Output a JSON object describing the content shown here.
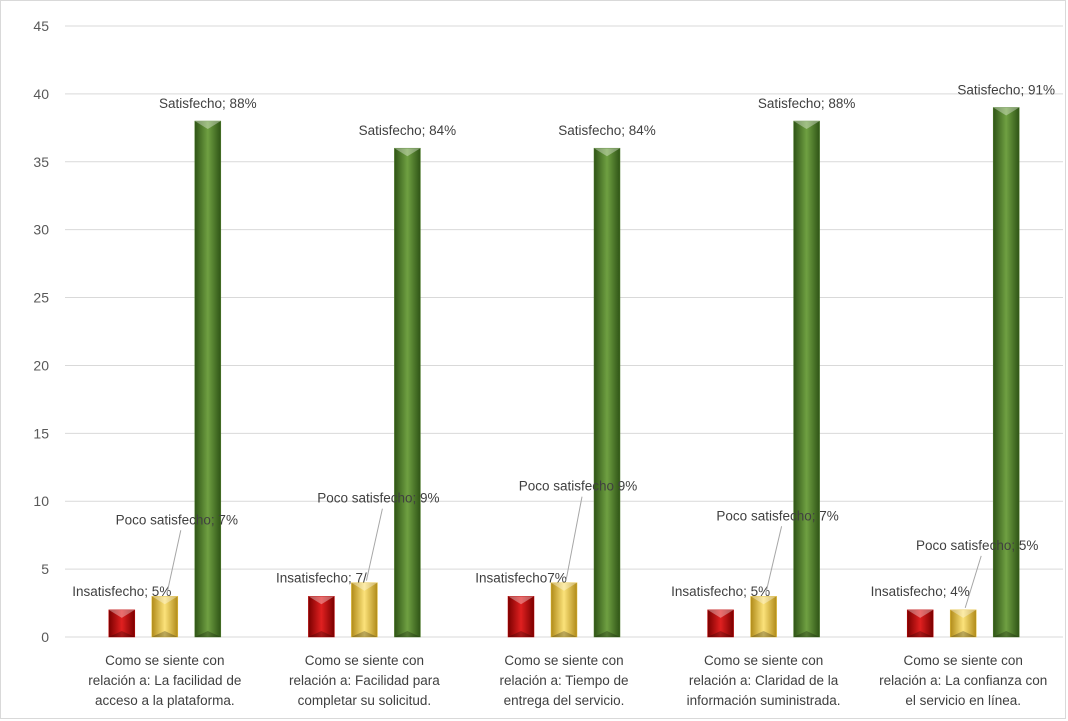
{
  "chart_data": {
    "type": "bar",
    "title": "",
    "xlabel": "",
    "ylabel": "",
    "ylim": [
      0,
      45
    ],
    "yticks": [
      0,
      5,
      10,
      15,
      20,
      25,
      30,
      35,
      40,
      45
    ],
    "grid": true,
    "legend": "none",
    "categories": [
      [
        "Como se siente con",
        "relación a: La facilidad de",
        "acceso a la plataforma."
      ],
      [
        "Como se siente con",
        "relación a: Facilidad para",
        "completar su solicitud."
      ],
      [
        "Como se siente con",
        "relación a: Tiempo de",
        "entrega del servicio."
      ],
      [
        "Como se siente con",
        "relación a: Claridad de la",
        "información suministrada."
      ],
      [
        "Como se siente con",
        "relación a: La confianza con",
        "el servicio en línea."
      ]
    ],
    "series": [
      {
        "color": "#c00000",
        "values": [
          2,
          3,
          3,
          2,
          2
        ],
        "labels": [
          "Insatisfecho; 5%",
          "Insatisfecho; 7/",
          "Insatisfecho7%",
          "Insatisfecho; 5%",
          "Insatisfecho; 4%"
        ]
      },
      {
        "color": "#e6c13a",
        "values": [
          3,
          4,
          4,
          3,
          2
        ],
        "labels": [
          "Poco satisfecho; 7%",
          "Poco satisfecho; 9%",
          "Poco satisfecho 9%",
          "Poco satisfecho; 7%",
          "Poco satisfecho; 5%"
        ]
      },
      {
        "color": "#4e7d2a",
        "values": [
          38,
          36,
          36,
          38,
          39
        ],
        "labels": [
          "Satisfecho; 88%",
          "Satisfecho; 84%",
          "Satisfecho; 84%",
          "Satisfecho; 88%",
          "Satisfecho; 91%"
        ]
      }
    ]
  }
}
